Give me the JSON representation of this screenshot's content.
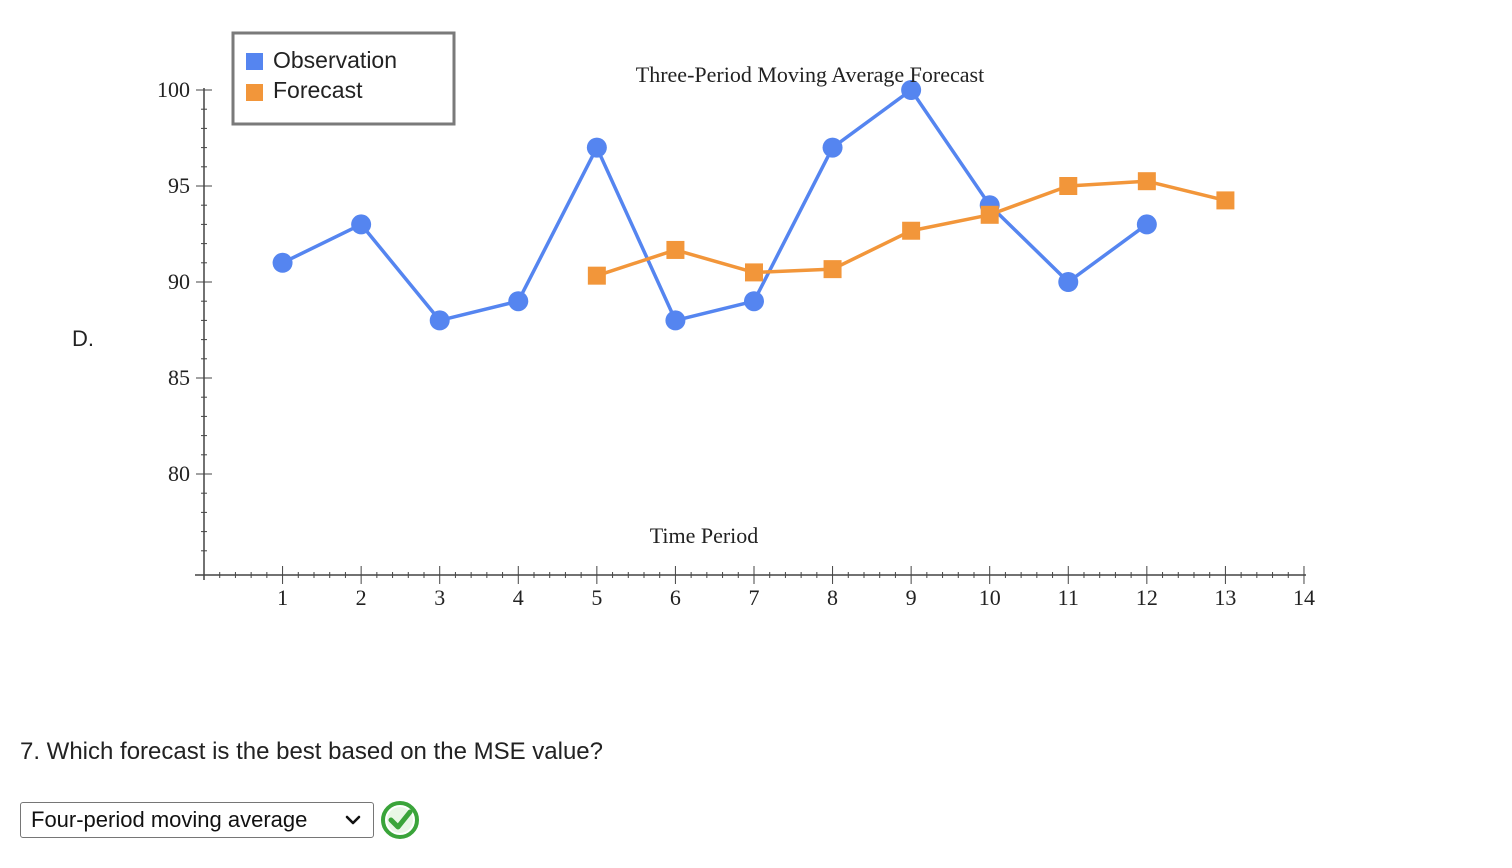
{
  "option_label": "D.",
  "chart_data": {
    "type": "line",
    "title": "Three-Period Moving Average Forecast",
    "xlabel": "Time Period",
    "ylabel": "",
    "xlim": [
      0,
      14
    ],
    "ylim": [
      75,
      100
    ],
    "x_ticks": [
      1,
      2,
      3,
      4,
      5,
      6,
      7,
      8,
      9,
      10,
      11,
      12,
      13,
      14
    ],
    "y_ticks": [
      80,
      85,
      90,
      95,
      100
    ],
    "grid": false,
    "legend_position": "top-left",
    "series": [
      {
        "name": "Observation",
        "color": "#5585f0",
        "marker": "circle",
        "x": [
          1,
          2,
          3,
          4,
          5,
          6,
          7,
          8,
          9,
          10,
          11,
          12
        ],
        "y": [
          91,
          93,
          88,
          89,
          97,
          88,
          89,
          97,
          100,
          94,
          90,
          93
        ]
      },
      {
        "name": "Forecast",
        "color": "#f2963a",
        "marker": "square",
        "x": [
          5,
          6,
          7,
          8,
          9,
          10,
          11,
          12,
          13
        ],
        "y": [
          90.33,
          91.67,
          90.5,
          90.67,
          92.67,
          93.5,
          95,
          95.25,
          94.25
        ]
      }
    ]
  },
  "question": {
    "text": "7. Which forecast is the best based on the MSE value?",
    "selected_option": "Four-period moving average",
    "status_icon": "check-icon",
    "status_color": "#3aa43a"
  }
}
